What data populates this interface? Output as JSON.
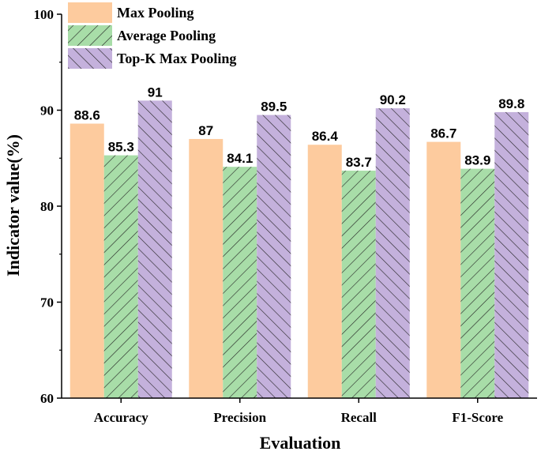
{
  "chart_data": {
    "type": "bar",
    "xlabel": "Evaluation",
    "ylabel": "Indicator value(%)",
    "ylim": [
      60,
      100
    ],
    "yticks": [
      60,
      70,
      80,
      90,
      100
    ],
    "categories": [
      "Accuracy",
      "Precision",
      "Recall",
      "F1-Score"
    ],
    "series": [
      {
        "name": "Max Pooling",
        "values": [
          88.6,
          87,
          86.4,
          86.7
        ],
        "labels": [
          "88.6",
          "87",
          "86.4",
          "86.7"
        ],
        "color": "#FDCB9E",
        "hatch": "none"
      },
      {
        "name": "Average Pooling",
        "values": [
          85.3,
          84.1,
          83.7,
          83.9
        ],
        "labels": [
          "85.3",
          "84.1",
          "83.7",
          "83.9"
        ],
        "color": "#A8DDA8",
        "hatch": "forward"
      },
      {
        "name": "Top-K Max Pooling",
        "values": [
          91,
          89.5,
          90.2,
          89.8
        ],
        "labels": [
          "91",
          "89.5",
          "90.2",
          "89.8"
        ],
        "color": "#C4B1DC",
        "hatch": "backward"
      }
    ],
    "legend_position": "top-left",
    "grid": false
  }
}
